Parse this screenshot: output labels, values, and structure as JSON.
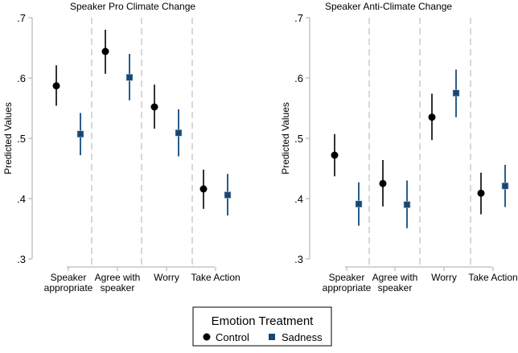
{
  "chart_data": [
    {
      "type": "scatter",
      "title": "Speaker Pro Climate Change",
      "ylabel": "Predicted Values",
      "xlabel": "",
      "ylim": [
        0.3,
        0.7
      ],
      "yticks": [
        ".3",
        ".4",
        ".5",
        ".6",
        ".7"
      ],
      "categories": [
        [
          "Speaker",
          "appropriate"
        ],
        [
          "Agree with",
          "speaker"
        ],
        [
          "Worry"
        ],
        [
          "Take Action"
        ]
      ],
      "series": [
        {
          "name": "Control",
          "values": [
            0.587,
            0.644,
            0.552,
            0.416
          ],
          "ci_low": [
            0.554,
            0.607,
            0.516,
            0.383
          ],
          "ci_high": [
            0.621,
            0.68,
            0.589,
            0.448
          ]
        },
        {
          "name": "Sadness",
          "values": [
            0.507,
            0.601,
            0.509,
            0.406
          ],
          "ci_low": [
            0.472,
            0.563,
            0.47,
            0.372
          ],
          "ci_high": [
            0.542,
            0.64,
            0.548,
            0.441
          ]
        }
      ]
    },
    {
      "type": "scatter",
      "title": "Speaker Anti-Climate Change",
      "ylabel": "Predicted Values",
      "xlabel": "",
      "ylim": [
        0.3,
        0.7
      ],
      "yticks": [
        ".3",
        ".4",
        ".5",
        ".6",
        ".7"
      ],
      "categories": [
        [
          "Speaker",
          "appropriate"
        ],
        [
          "Agree with",
          "speaker"
        ],
        [
          "Worry"
        ],
        [
          "Take Action"
        ]
      ],
      "series": [
        {
          "name": "Control",
          "values": [
            0.472,
            0.425,
            0.535,
            0.409
          ],
          "ci_low": [
            0.437,
            0.387,
            0.497,
            0.374
          ],
          "ci_high": [
            0.507,
            0.464,
            0.574,
            0.443
          ]
        },
        {
          "name": "Sadness",
          "values": [
            0.391,
            0.39,
            0.575,
            0.421
          ],
          "ci_low": [
            0.355,
            0.351,
            0.535,
            0.386
          ],
          "ci_high": [
            0.427,
            0.43,
            0.614,
            0.456
          ]
        }
      ]
    }
  ],
  "legend": {
    "title": "Emotion Treatment",
    "items": [
      {
        "label": "Control",
        "marker": "circle",
        "color": "#000000"
      },
      {
        "label": "Sadness",
        "marker": "square",
        "color": "#1a476f"
      }
    ],
    "placement": "bottom"
  },
  "colors": {
    "control": "#000000",
    "sadness": "#1a476f",
    "control_ci": "#333333",
    "sadness_ci": "#2a5d8a",
    "divider": "#cccccc",
    "axis": "#aaaaaa"
  }
}
